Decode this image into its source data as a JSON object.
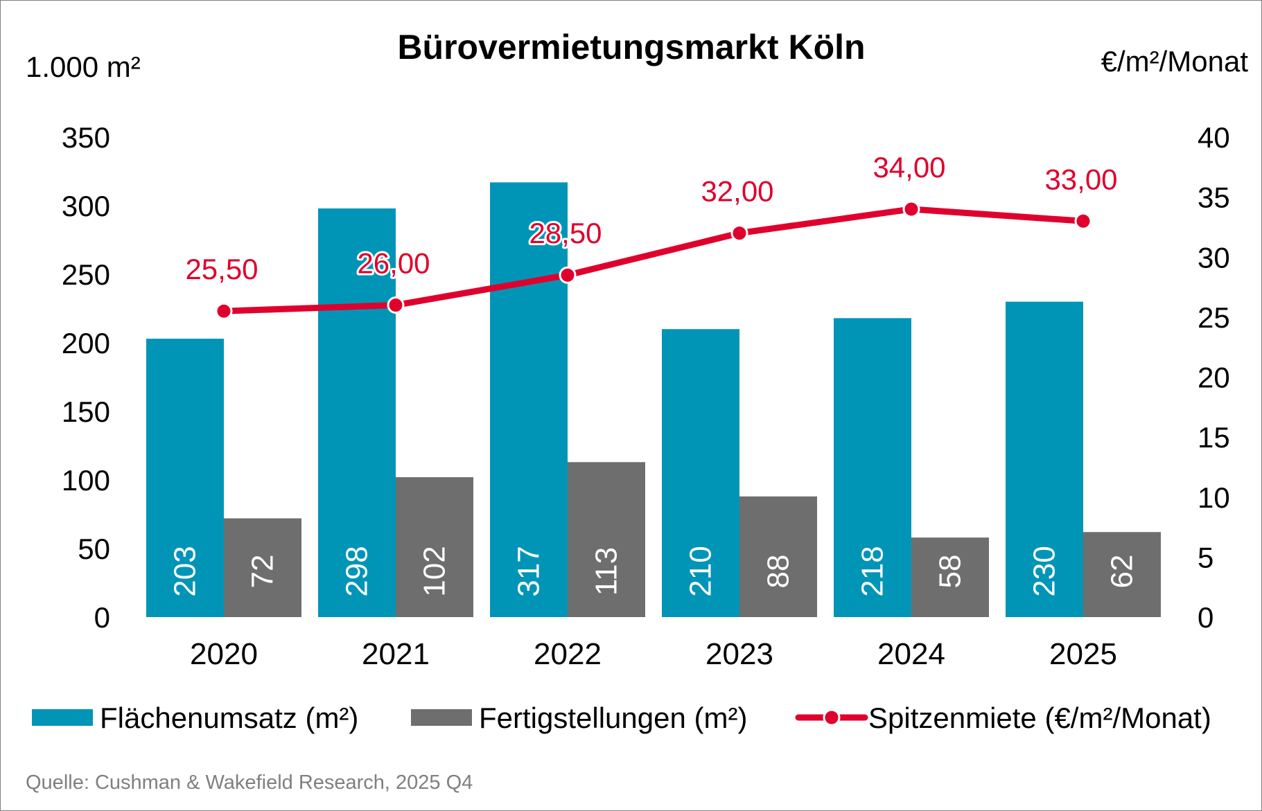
{
  "chart_data": {
    "type": "bar",
    "title": "Bürovermietungsmarkt Köln",
    "y_left_label": "1.000 m²",
    "y_right_label": "€/m²/Monat",
    "categories": [
      "2020",
      "2021",
      "2022",
      "2023",
      "2024",
      "2025"
    ],
    "ylim_left": [
      0,
      350
    ],
    "yticks_left": [
      "0",
      "50",
      "100",
      "150",
      "200",
      "250",
      "300",
      "350"
    ],
    "ylim_right": [
      0,
      40
    ],
    "yticks_right": [
      "0",
      "5",
      "10",
      "15",
      "20",
      "25",
      "30",
      "35",
      "40"
    ],
    "grid": false,
    "legend_position": "bottom",
    "series": [
      {
        "name": "Flächenumsatz (m²)",
        "kind": "bar",
        "axis": "left",
        "color": "#0095b6",
        "values": [
          203,
          298,
          317,
          210,
          218,
          230
        ],
        "labels": [
          "203",
          "298",
          "317",
          "210",
          "218",
          "230"
        ]
      },
      {
        "name": "Fertigstellungen (m²)",
        "kind": "bar",
        "axis": "left",
        "color": "#6d6e6d",
        "values": [
          72,
          102,
          113,
          88,
          58,
          62
        ],
        "labels": [
          "72",
          "102",
          "113",
          "88",
          "58",
          "62"
        ]
      },
      {
        "name": "Spitzenmiete (€/m²/Monat)",
        "kind": "line",
        "axis": "right",
        "color": "#e0002d",
        "values": [
          25.5,
          26.0,
          28.5,
          32.0,
          34.0,
          33.0
        ],
        "labels": [
          "25,50",
          "26,00",
          "28,50",
          "32,00",
          "34,00",
          "33,00"
        ]
      }
    ],
    "source": "Quelle: Cushman & Wakefield Research, 2025 Q4"
  }
}
